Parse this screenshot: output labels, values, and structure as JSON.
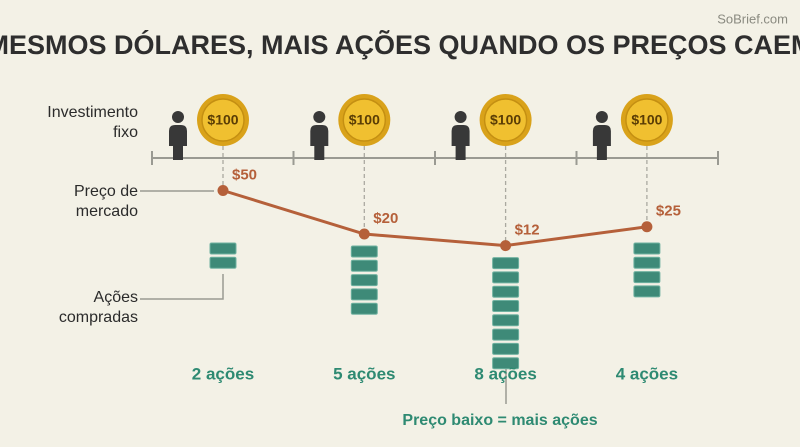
{
  "title": "MESMOS DÓLARES, MAIS AÇÕES QUANDO OS PREÇOS CAEM",
  "brand": "SoBrief.com",
  "row_labels": {
    "investment": "Investimento fixo",
    "price": "Preço de mercado",
    "shares": "Ações compradas"
  },
  "periods": [
    {
      "investment": "$100",
      "price": 50,
      "price_label": "$50",
      "shares": 2,
      "shares_label": "2 ações"
    },
    {
      "investment": "$100",
      "price": 20,
      "price_label": "$20",
      "shares": 5,
      "shares_label": "5 ações"
    },
    {
      "investment": "$100",
      "price": 12,
      "price_label": "$12",
      "shares": 8,
      "shares_label": "8 ações"
    },
    {
      "investment": "$100",
      "price": 25,
      "price_label": "$25",
      "shares": 4,
      "shares_label": "4 ações"
    }
  ],
  "note": "Preço baixo = mais ações"
}
